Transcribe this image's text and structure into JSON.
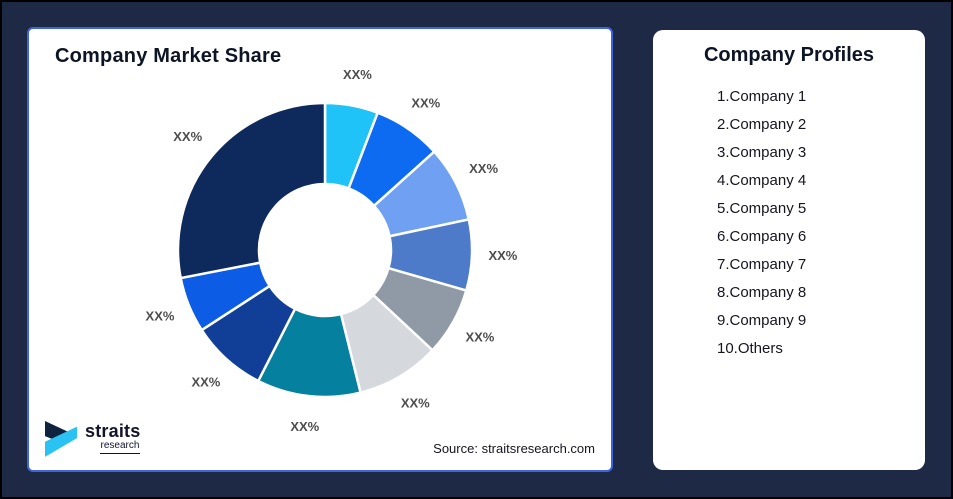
{
  "background": {
    "navy": "#1E2A45",
    "outer_border": "#000000"
  },
  "market_share_card": {
    "title": "Company Market Share",
    "source_note": "Source: straitsresearch.com",
    "border_color": "#3E64DE"
  },
  "logo": {
    "word": "straits",
    "sub": "research",
    "mark_navy": "#0F2240",
    "mark_cyan": "#29C2F2"
  },
  "chart_data": {
    "type": "pie",
    "subtype": "donut",
    "title": "Company Market Share",
    "legend_position": "none",
    "label_color": "#4D4D4D",
    "slice_gap_color": "#FFFFFF",
    "slices": [
      {
        "name": "Company 1",
        "angle_deg": 21,
        "color": "#1FC3F7",
        "label": "XX%"
      },
      {
        "name": "Company 2",
        "angle_deg": 27,
        "color": "#0D6BF2",
        "label": "XX%"
      },
      {
        "name": "Company 3",
        "angle_deg": 30,
        "color": "#6FA0F2",
        "label": "XX%"
      },
      {
        "name": "Company 4",
        "angle_deg": 28,
        "color": "#4E7BC9",
        "label": "XX%"
      },
      {
        "name": "Company 5",
        "angle_deg": 27,
        "color": "#9099A6",
        "label": "XX%"
      },
      {
        "name": "Company 6",
        "angle_deg": 33,
        "color": "#D5D8DD",
        "label": "XX%"
      },
      {
        "name": "Company 7",
        "angle_deg": 41,
        "color": "#05819F",
        "label": "XX%"
      },
      {
        "name": "Company 8",
        "angle_deg": 30,
        "color": "#113E97",
        "label": "XX%"
      },
      {
        "name": "Company 9",
        "angle_deg": 22,
        "color": "#0C5CE5",
        "label": "XX%"
      },
      {
        "name": "Others",
        "angle_deg": 101,
        "color": "#0E2A5C",
        "label": "XX%"
      }
    ]
  },
  "profiles_card": {
    "title": "Company Profiles",
    "items": [
      "1.Company 1",
      "2.Company 2",
      "3.Company 3",
      "4.Company 4",
      "5.Company 5",
      "6.Company 6",
      "7.Company 7",
      "8.Company 8",
      "9.Company 9",
      "10.Others"
    ]
  }
}
